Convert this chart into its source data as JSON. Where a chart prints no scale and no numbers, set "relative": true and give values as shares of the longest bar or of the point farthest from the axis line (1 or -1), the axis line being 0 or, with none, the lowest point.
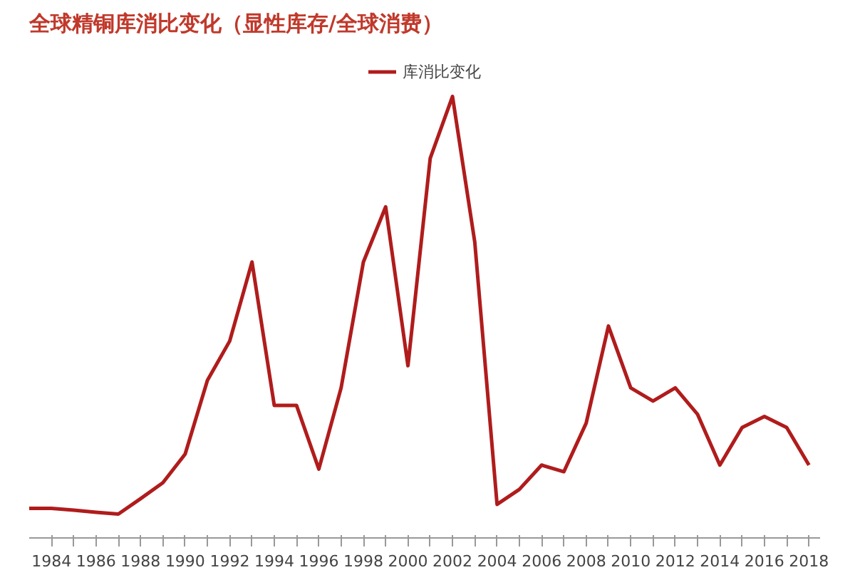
{
  "chart_data": {
    "type": "line",
    "title": "全球精铜库消比变化（显性库存/全球消费）",
    "relative": true,
    "x": [
      1983,
      1984,
      1985,
      1986,
      1987,
      1988,
      1989,
      1990,
      1991,
      1992,
      1993,
      1994,
      1995,
      1996,
      1997,
      1998,
      1999,
      2000,
      2001,
      2002,
      2003,
      2004,
      2005,
      2006,
      2007,
      2008,
      2009,
      2010,
      2011,
      2012,
      2013,
      2014,
      2015,
      2016,
      2017,
      2018
    ],
    "series": [
      {
        "name": "库消比变化",
        "color": "#b01c1c",
        "values": [
          0.067,
          0.067,
          0.063,
          0.058,
          0.054,
          0.089,
          0.125,
          0.19,
          0.357,
          0.446,
          0.625,
          0.3,
          0.3,
          0.156,
          0.34,
          0.625,
          0.75,
          0.39,
          0.86,
          1,
          0.67,
          0.076,
          0.11,
          0.165,
          0.15,
          0.26,
          0.48,
          0.34,
          0.31,
          0.34,
          0.28,
          0.165,
          0.25,
          0.275,
          0.25,
          0.165
        ]
      }
    ],
    "xlim": [
      1983,
      2018.5
    ],
    "xticks": [
      {
        "value": 1984,
        "label": "1984"
      },
      {
        "value": 1985,
        "label": null
      },
      1986,
      {
        "value": 1987,
        "label": null
      },
      1988,
      {
        "value": 1989,
        "label": null
      },
      1990,
      {
        "value": 1991,
        "label": null
      },
      1992,
      {
        "value": 1993,
        "label": null
      },
      1994,
      {
        "value": 1995,
        "label": null
      },
      1996,
      {
        "value": 1997,
        "label": null
      },
      1998,
      {
        "value": 1999,
        "label": null
      },
      2000,
      {
        "value": 2001,
        "label": null
      },
      2002,
      {
        "value": 2003,
        "label": null
      },
      2004,
      {
        "value": 2005,
        "label": null
      },
      2006,
      {
        "value": 2007,
        "label": null
      },
      2008,
      {
        "value": 2009,
        "label": null
      },
      2010,
      {
        "value": 2011,
        "label": null
      },
      2012,
      {
        "value": 2013,
        "label": null
      },
      2014,
      {
        "value": 2015,
        "label": null
      },
      2016,
      {
        "value": 2017,
        "label": null
      },
      2018
    ],
    "grid": false,
    "legend": "top",
    "line_style": "solid"
  }
}
